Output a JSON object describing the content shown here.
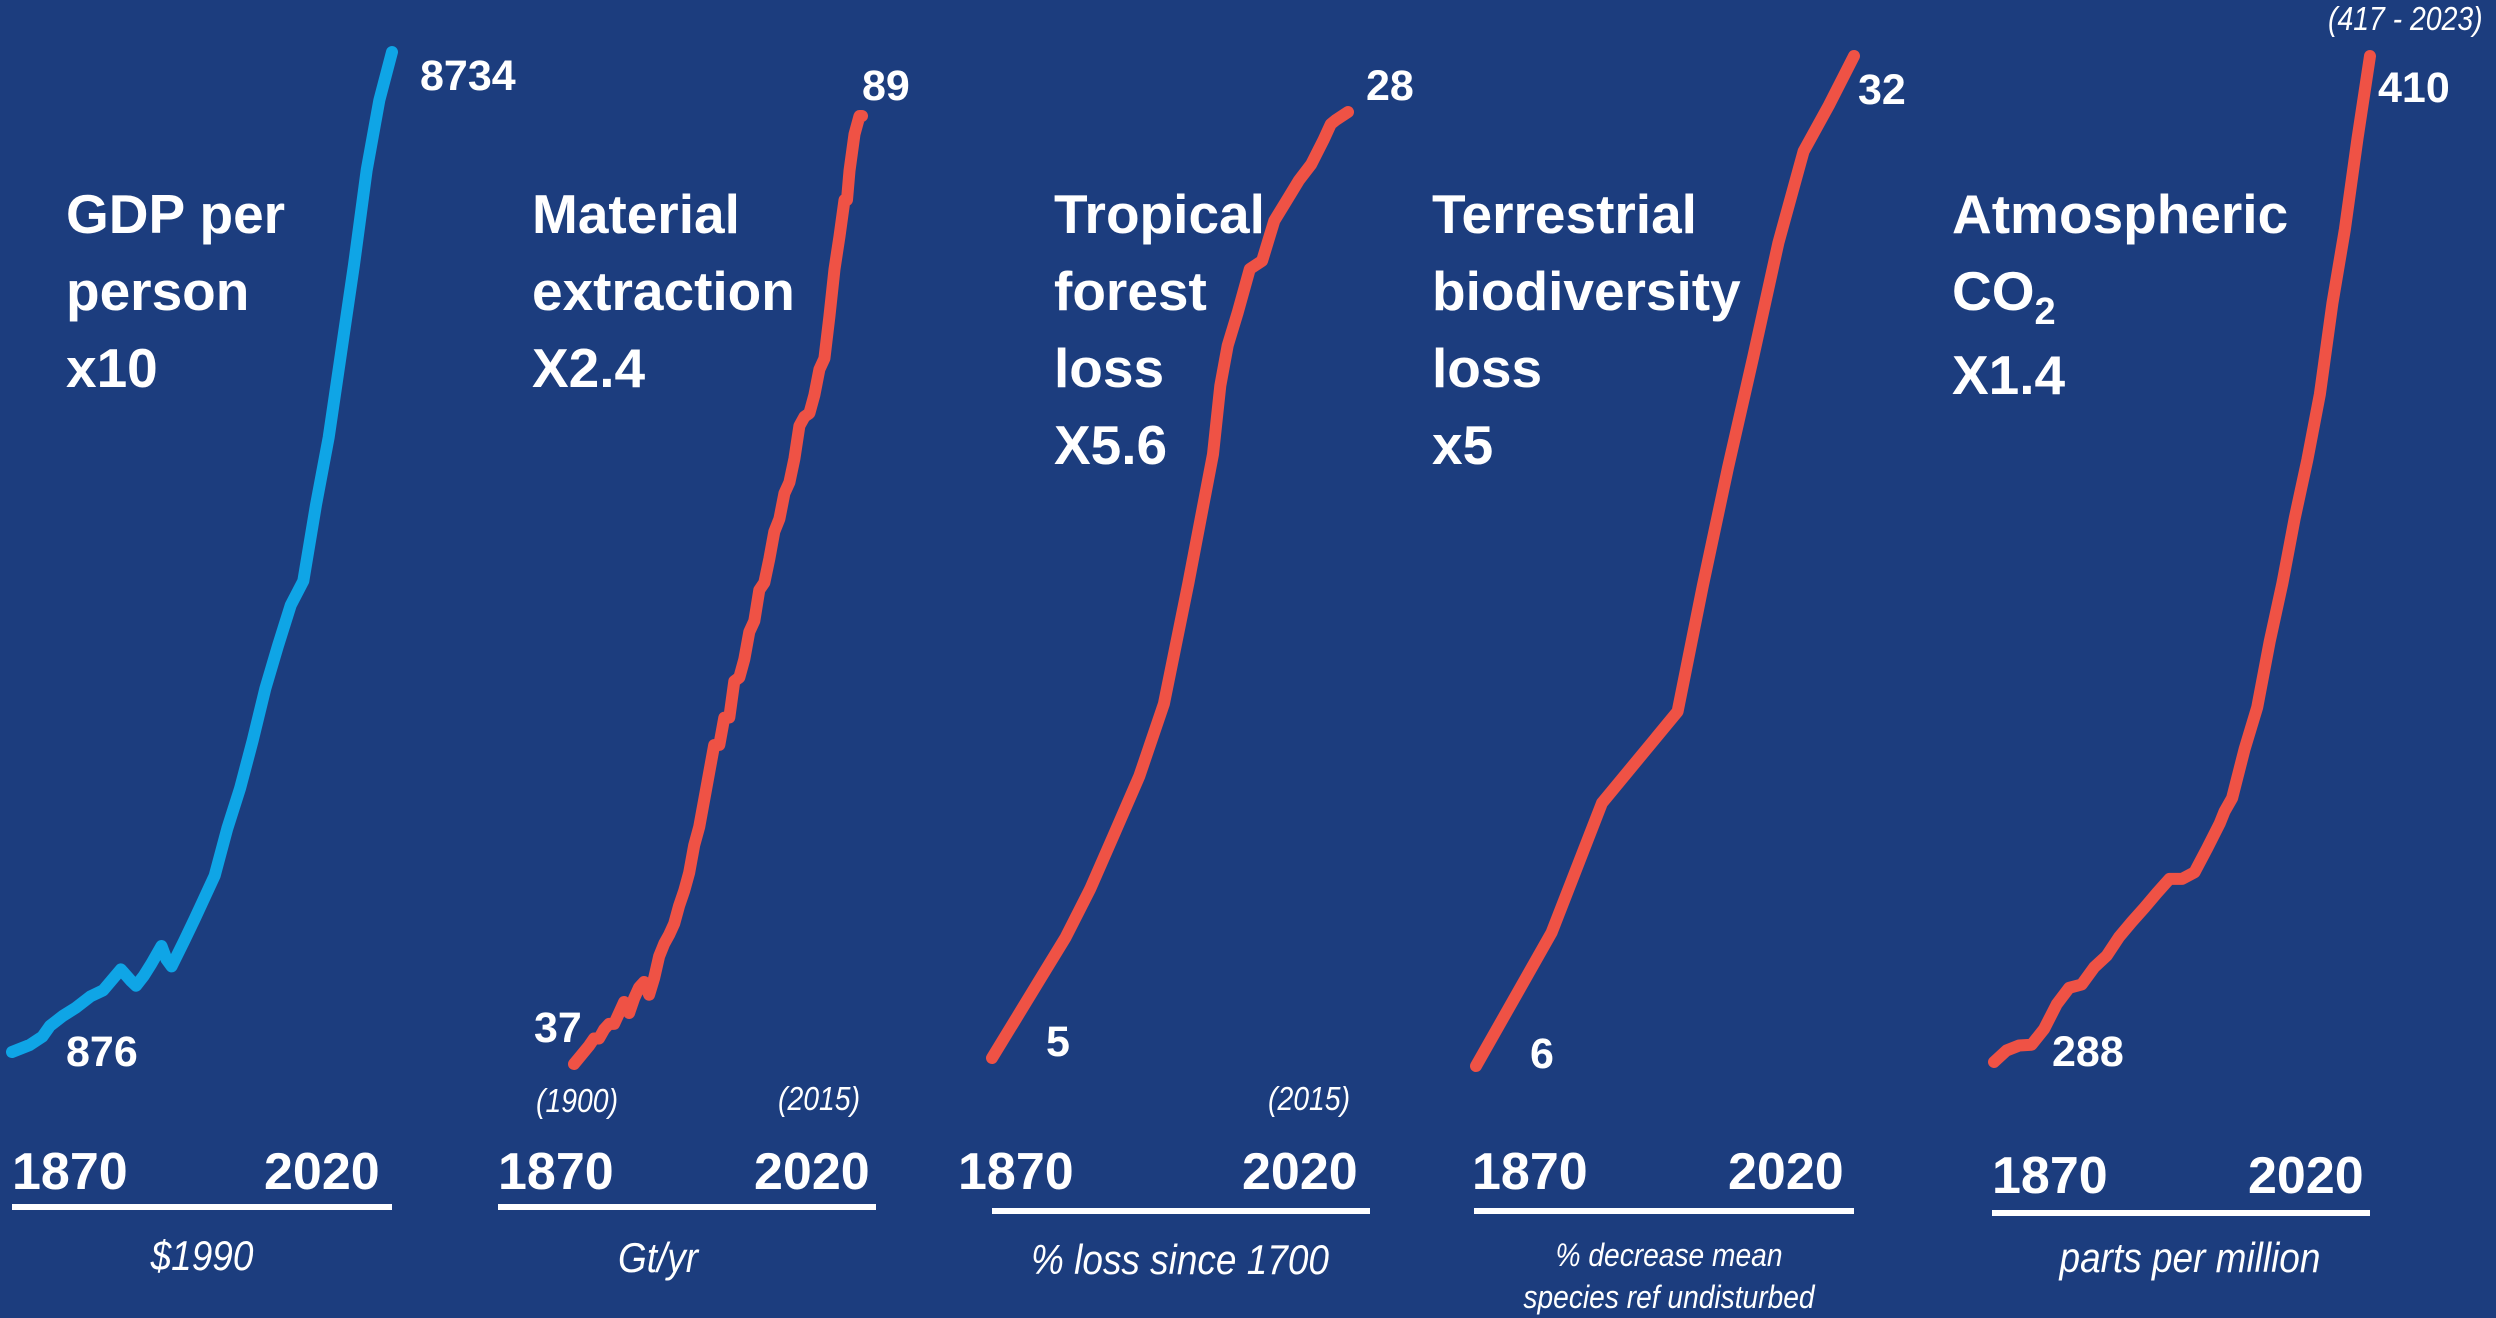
{
  "colors": {
    "background": "#1c3d7e",
    "gdp": "#0fa5e6",
    "environment": "#ef5245",
    "text": "#ffffff"
  },
  "chart_data": [
    {
      "type": "line",
      "title_lines": [
        "GDP per",
        "person",
        "x10"
      ],
      "x": [
        1870,
        1877,
        1882,
        1885,
        1890,
        1895,
        1901,
        1906,
        1913,
        1917,
        1919,
        1922,
        1925,
        1929,
        1931,
        1933,
        1938,
        1942,
        1945,
        1950,
        1955,
        1960,
        1965,
        1970,
        1975,
        1980,
        1985,
        1990,
        1995,
        2000,
        2005,
        2010,
        2015,
        2020
      ],
      "values": [
        876,
        931,
        997,
        1081,
        1159,
        1221,
        1313,
        1361,
        1525,
        1434,
        1397,
        1474,
        1569,
        1709,
        1604,
        1549,
        1751,
        1917,
        2046,
        2262,
        2632,
        2946,
        3324,
        3731,
        4069,
        4386,
        4577,
        5176,
        5706,
        6381,
        7062,
        7807,
        8354,
        8734
      ],
      "start_label": "876",
      "end_label": "8734",
      "x_ticks": [
        "1870",
        "2020"
      ],
      "unit": "$1990"
    },
    {
      "type": "line",
      "title_lines": [
        "Material",
        "extraction",
        "X2.4"
      ],
      "x": [
        1900,
        1903,
        1906,
        1908,
        1910,
        1912,
        1914,
        1916,
        1918,
        1920,
        1922,
        1924,
        1926,
        1928,
        1930,
        1932,
        1934,
        1936,
        1938,
        1940,
        1942,
        1944,
        1946,
        1948,
        1950,
        1952,
        1954,
        1956,
        1958,
        1960,
        1962,
        1964,
        1966,
        1968,
        1970,
        1972,
        1974,
        1976,
        1978,
        1980,
        1982,
        1984,
        1986,
        1988,
        1990,
        1992,
        1994,
        1996,
        1998,
        2000,
        2002,
        2004,
        2006,
        2008,
        2009,
        2010,
        2012,
        2014,
        2015
      ],
      "values": [
        37,
        37.5,
        38,
        38.4,
        38.4,
        38.9,
        39.2,
        39.2,
        39.8,
        40.4,
        39.8,
        40.6,
        41.2,
        41.5,
        40.8,
        41.7,
        42.9,
        43.6,
        44.1,
        44.7,
        45.7,
        46.5,
        47.5,
        49,
        50,
        51.5,
        53,
        54.5,
        54.5,
        56,
        56,
        58,
        58.2,
        59.2,
        60.7,
        61.3,
        63,
        63.4,
        64.7,
        66.2,
        66.9,
        68.3,
        68.9,
        70.2,
        72,
        72.5,
        72.7,
        73.7,
        75.1,
        75.7,
        78,
        80.6,
        82.4,
        84.4,
        84.4,
        86,
        88,
        89,
        89
      ],
      "start_label": "37",
      "end_label": "89",
      "start_note": "(1900)",
      "end_note": "(2015)",
      "x_ticks": [
        "1870",
        "2020"
      ],
      "unit": "Gt/yr"
    },
    {
      "type": "line",
      "title_lines": [
        "Tropical",
        "forest",
        "loss",
        "X5.6"
      ],
      "x": [
        1870,
        1880,
        1890,
        1900,
        1910,
        1920,
        1930,
        1940,
        1950,
        1955,
        1960,
        1963,
        1966,
        1970,
        1975,
        1980,
        1985,
        1990,
        1995,
        2000,
        2005,
        2008,
        2010,
        2015
      ],
      "values": [
        5,
        6,
        7,
        8,
        9.2,
        10.6,
        12,
        13.8,
        16.8,
        18.4,
        20,
        21.7,
        22.7,
        23.5,
        24.6,
        24.8,
        25.8,
        26.3,
        26.8,
        27.2,
        27.8,
        28.2,
        28.3,
        28.5
      ],
      "start_label": "5",
      "end_label": "28",
      "end_note": "(2015)",
      "x_ticks": [
        "1870",
        "2020"
      ],
      "unit": "% loss since 1700"
    },
    {
      "type": "line",
      "title_lines": [
        "Terrestrial",
        "biodiversity",
        "loss",
        "x5"
      ],
      "x": [
        1870,
        1900,
        1920,
        1950,
        1960,
        1970,
        1980,
        1990,
        2000,
        2010,
        2020
      ],
      "values": [
        6,
        9.5,
        12.9,
        15.3,
        18.6,
        21.7,
        24.6,
        27.6,
        30,
        31.2,
        32.5
      ],
      "start_label": "6",
      "end_label": "32",
      "x_ticks": [
        "1870",
        "2020"
      ],
      "unit_lines": [
        "% decrease mean",
        "species ref undisturbed"
      ]
    },
    {
      "type": "line",
      "title_lines": [
        "Atmospheric",
        "CO",
        "X1.4"
      ],
      "title_subscript": "2",
      "x": [
        1870,
        1875,
        1880,
        1885,
        1890,
        1895,
        1900,
        1905,
        1910,
        1915,
        1920,
        1925,
        1930,
        1935,
        1940,
        1945,
        1950,
        1955,
        1960,
        1962,
        1965,
        1970,
        1975,
        1980,
        1985,
        1990,
        1995,
        2000,
        2005,
        2010,
        2015,
        2020
      ],
      "values": [
        288,
        289.4,
        290,
        290.1,
        292,
        295,
        297,
        297.4,
        299.5,
        300.9,
        303.2,
        305,
        306.7,
        308.5,
        310.2,
        310.2,
        311,
        313.9,
        316.9,
        318.4,
        320,
        326,
        331,
        339,
        346,
        354,
        361,
        369,
        380,
        389,
        400,
        410
      ],
      "start_label": "288",
      "end_label": "410",
      "end_note": "(417 - 2023)",
      "x_ticks": [
        "1870",
        "2020"
      ],
      "unit": "parts per million"
    }
  ]
}
